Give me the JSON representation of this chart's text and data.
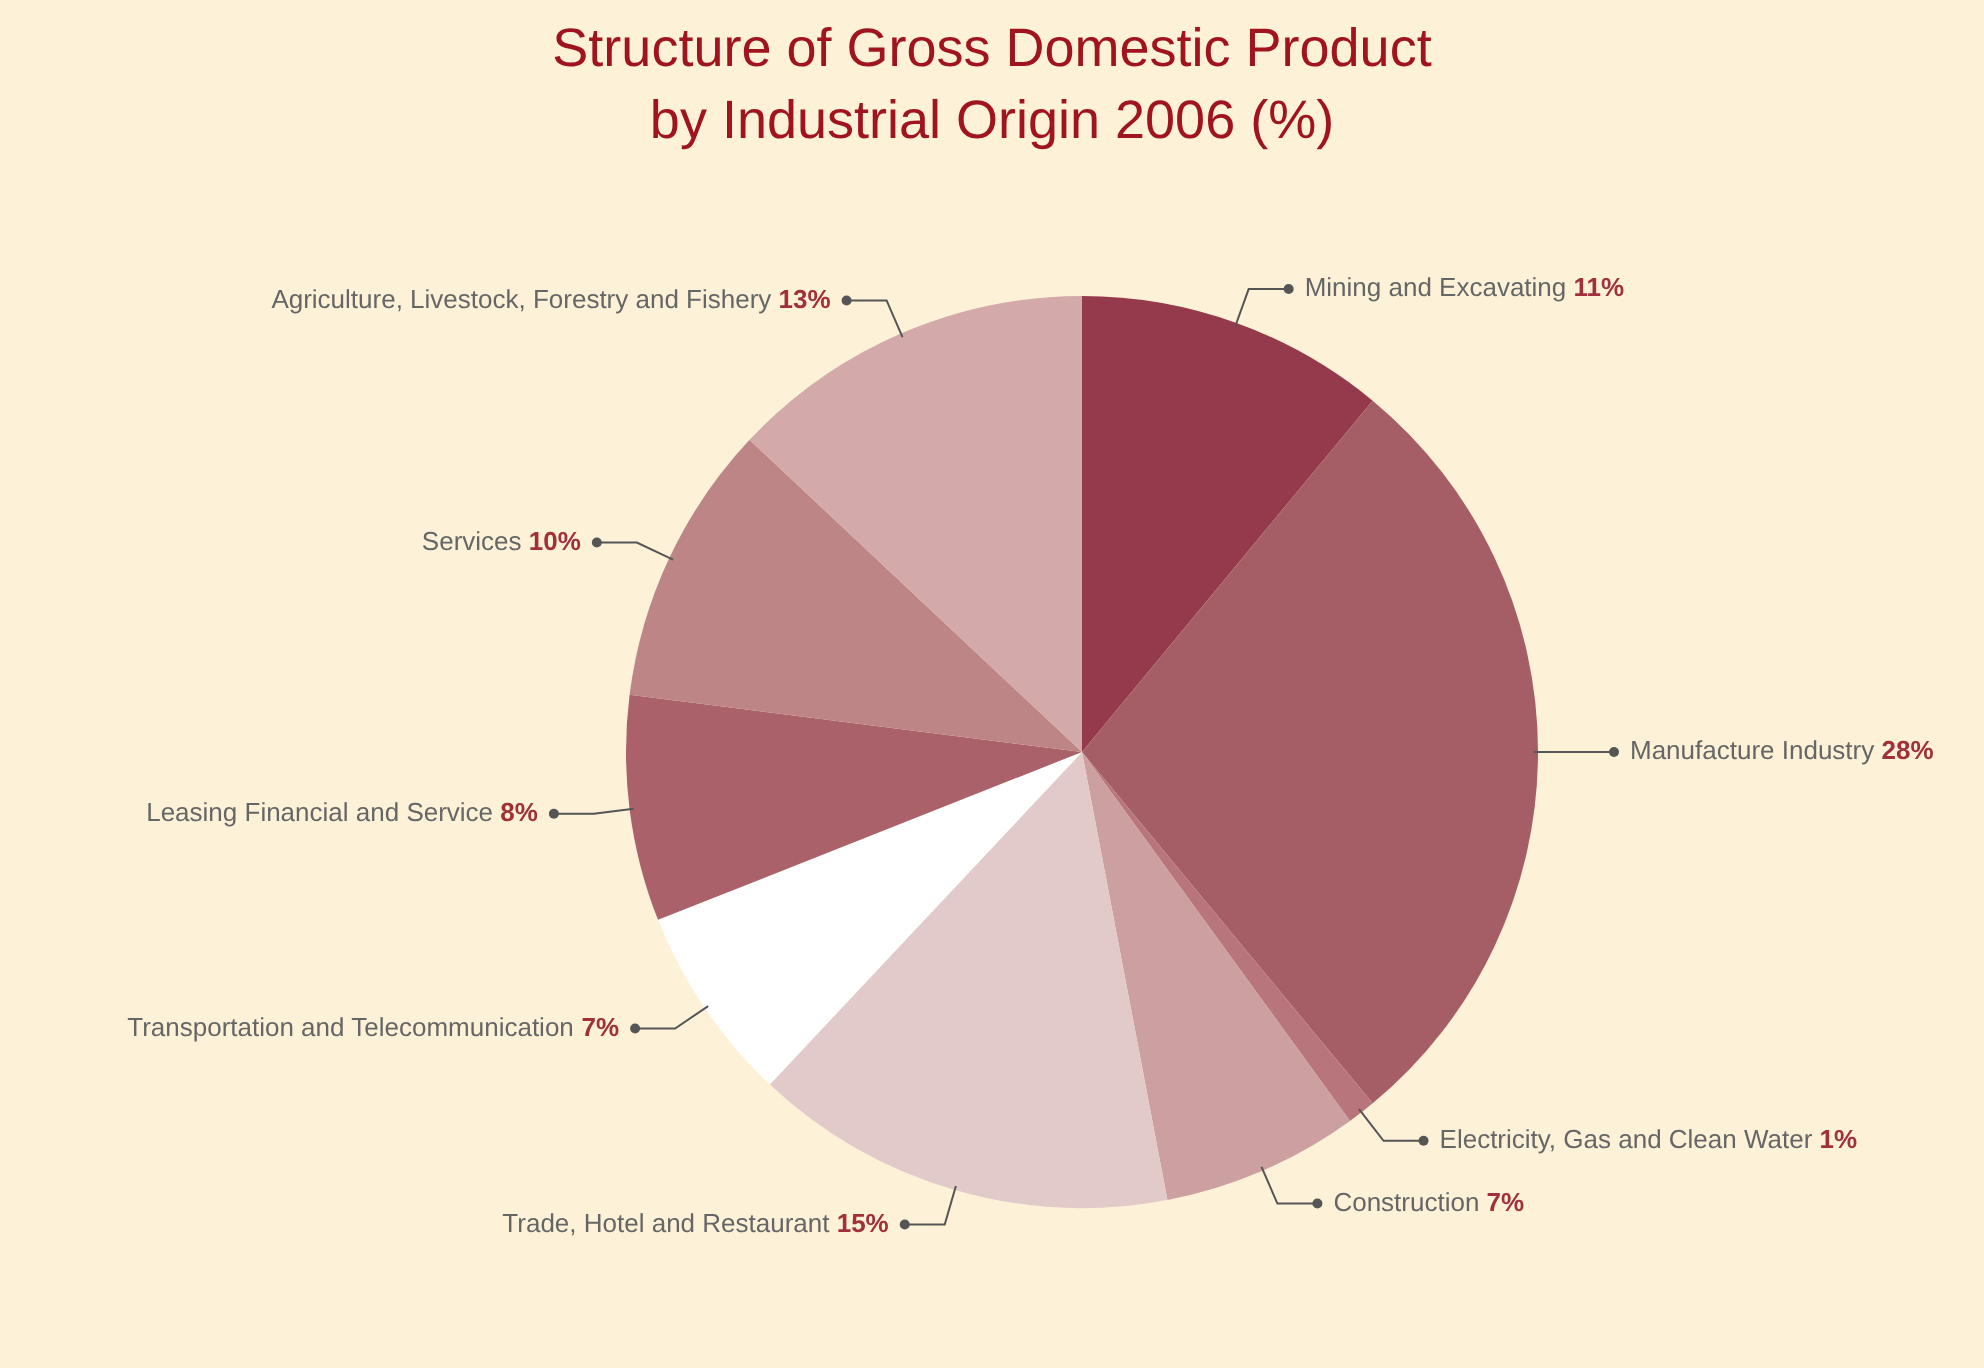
{
  "chart_data": {
    "type": "pie",
    "title": "Structure of Gross Domestic Product by Industrial Origin 2006 (%)",
    "categories": [
      "Mining and Excavating",
      "Manufacture Industry",
      "Electricity, Gas and Clean Water",
      "Construction",
      "Trade, Hotel and Restaurant",
      "Transportation and Telecommunication",
      "Leasing Financial and Service",
      "Services",
      "Agriculture, Livestock, Forestry and Fishery"
    ],
    "values": [
      11,
      28,
      1,
      7,
      15,
      7,
      8,
      10,
      13
    ],
    "colors": [
      "#943a4c",
      "#a55e66",
      "#b8767c",
      "#cc9fa1",
      "#e2cacb",
      "#ffffff",
      "#aa6169",
      "#bd8586",
      "#d3a9aa"
    ],
    "value_labels": [
      "11%",
      "28%",
      "1%",
      "7%",
      "15%",
      "7%",
      "8%",
      "10%",
      "13%"
    ],
    "legend": false
  }
}
